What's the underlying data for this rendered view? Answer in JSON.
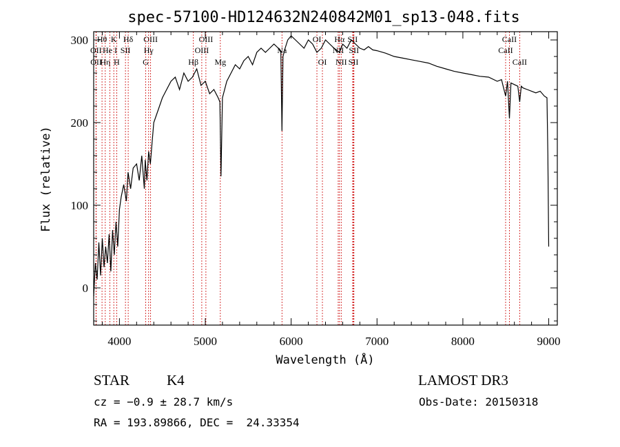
{
  "chart_data": {
    "type": "line",
    "title": "spec-57100-HD124632N240842M01_sp13-048.fits",
    "xlabel": "Wavelength (Å)",
    "ylabel": "Flux (relative)",
    "xlim": [
      3700,
      9100
    ],
    "ylim": [
      -45,
      310
    ],
    "xticks": [
      4000,
      5000,
      6000,
      7000,
      8000,
      9000
    ],
    "yticks": [
      0,
      100,
      200,
      300
    ],
    "grid": false,
    "series": [
      {
        "name": "flux",
        "x": [
          3700,
          3720,
          3740,
          3760,
          3780,
          3800,
          3820,
          3840,
          3860,
          3880,
          3900,
          3920,
          3940,
          3960,
          3980,
          4000,
          4020,
          4050,
          4080,
          4100,
          4130,
          4160,
          4200,
          4230,
          4260,
          4290,
          4300,
          4320,
          4340,
          4360,
          4380,
          4400,
          4450,
          4500,
          4550,
          4600,
          4650,
          4700,
          4750,
          4800,
          4850,
          4900,
          4950,
          5000,
          5050,
          5100,
          5150,
          5170,
          5183,
          5200,
          5250,
          5300,
          5350,
          5400,
          5450,
          5500,
          5550,
          5600,
          5650,
          5700,
          5750,
          5800,
          5850,
          5880,
          5893,
          5905,
          5930,
          5960,
          6000,
          6050,
          6100,
          6150,
          6200,
          6250,
          6300,
          6350,
          6400,
          6450,
          6500,
          6563,
          6600,
          6650,
          6700,
          6750,
          6800,
          6850,
          6900,
          6950,
          7000,
          7100,
          7200,
          7300,
          7400,
          7500,
          7600,
          7700,
          7800,
          7900,
          8000,
          8100,
          8200,
          8300,
          8400,
          8450,
          8498,
          8520,
          8542,
          8560,
          8600,
          8640,
          8662,
          8680,
          8700,
          8750,
          8800,
          8850,
          8900,
          8950,
          8980,
          8990,
          9000
        ],
        "values": [
          -10,
          30,
          10,
          55,
          15,
          60,
          25,
          50,
          30,
          65,
          20,
          70,
          40,
          80,
          50,
          95,
          110,
          125,
          105,
          140,
          120,
          145,
          150,
          130,
          160,
          120,
          155,
          130,
          165,
          150,
          175,
          200,
          215,
          230,
          240,
          250,
          255,
          240,
          260,
          250,
          255,
          265,
          245,
          250,
          235,
          240,
          230,
          225,
          135,
          230,
          250,
          260,
          270,
          265,
          275,
          280,
          270,
          285,
          290,
          285,
          290,
          295,
          290,
          285,
          190,
          280,
          290,
          300,
          305,
          300,
          295,
          290,
          300,
          295,
          285,
          290,
          300,
          295,
          290,
          285,
          295,
          290,
          300,
          295,
          290,
          288,
          292,
          288,
          287,
          284,
          280,
          278,
          276,
          274,
          272,
          268,
          265,
          262,
          260,
          258,
          256,
          255,
          250,
          252,
          232,
          250,
          205,
          248,
          246,
          244,
          225,
          244,
          242,
          240,
          238,
          236,
          238,
          232,
          230,
          160,
          50
        ]
      }
    ],
    "line_markers": [
      {
        "label": "Hθ",
        "wavelength": 3797,
        "row": 0
      },
      {
        "label": "OII",
        "wavelength": 3727,
        "row": 1
      },
      {
        "label": "OII",
        "wavelength": 3729,
        "row": 2
      },
      {
        "label": "Hη",
        "wavelength": 3835,
        "row": 2
      },
      {
        "label": "K",
        "wavelength": 3934,
        "row": 0
      },
      {
        "label": "He I",
        "wavelength": 3889,
        "row": 1
      },
      {
        "label": "H",
        "wavelength": 3968,
        "row": 2
      },
      {
        "label": "SII",
        "wavelength": 4070,
        "row": 1
      },
      {
        "label": "Hδ",
        "wavelength": 4102,
        "row": 0
      },
      {
        "label": "OIII",
        "wavelength": 4363,
        "row": 0
      },
      {
        "label": "Hγ",
        "wavelength": 4340,
        "row": 1
      },
      {
        "label": "G",
        "wavelength": 4305,
        "row": 2
      },
      {
        "label": "Hβ",
        "wavelength": 4861,
        "row": 2
      },
      {
        "label": "OIII",
        "wavelength": 4959,
        "row": 1
      },
      {
        "label": "OIII",
        "wavelength": 5007,
        "row": 0
      },
      {
        "label": "Mg",
        "wavelength": 5175,
        "row": 2
      },
      {
        "label": "Na",
        "wavelength": 5893,
        "row": 1
      },
      {
        "label": "OI",
        "wavelength": 6300,
        "row": 0
      },
      {
        "label": "OI",
        "wavelength": 6364,
        "row": 2
      },
      {
        "label": "Hα",
        "wavelength": 6563,
        "row": 0
      },
      {
        "label": "NII",
        "wavelength": 6548,
        "row": 1
      },
      {
        "label": "NII",
        "wavelength": 6583,
        "row": 2
      },
      {
        "label": "SII",
        "wavelength": 6716,
        "row": 0
      },
      {
        "label": "SII",
        "wavelength": 6731,
        "row": 1
      },
      {
        "label": "SII",
        "wavelength": 6725,
        "row": 2
      },
      {
        "label": "CaII",
        "wavelength": 8542,
        "row": 0
      },
      {
        "label": "CaII",
        "wavelength": 8498,
        "row": 1
      },
      {
        "label": "CaII",
        "wavelength": 8662,
        "row": 2
      }
    ]
  },
  "info": {
    "class": "STAR",
    "subclass": "K4",
    "survey": "LAMOST DR3",
    "cz": "cz = −0.9 ± 28.7 km/s",
    "obs_date": "Obs-Date: 20150318",
    "coords": "RA = 193.89866, DEC =  24.33354"
  },
  "colors": {
    "line_marker": "#cc0000",
    "spectrum": "#000000",
    "axes": "#000000"
  }
}
